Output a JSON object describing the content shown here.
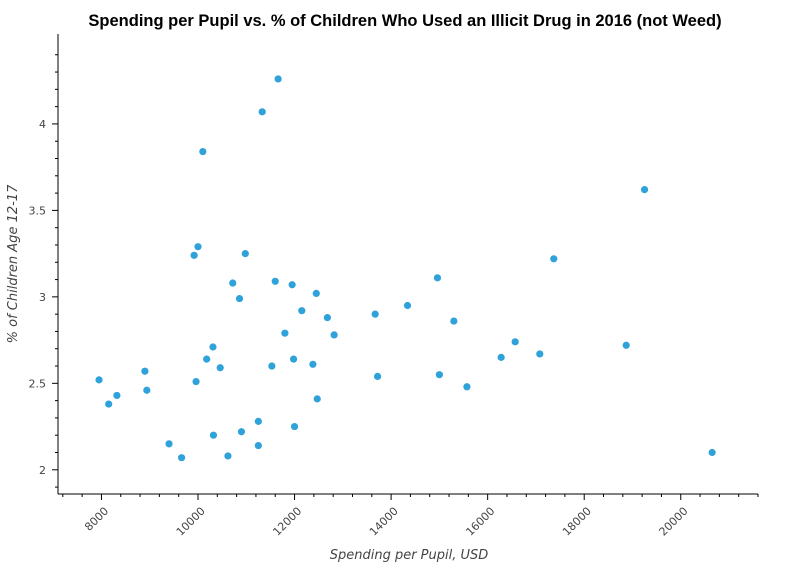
{
  "chart_data": {
    "type": "scatter",
    "title": "Spending per Pupil vs. % of Children Who Used an Illicit Drug in 2016 (not Weed)",
    "xlabel": "Spending per Pupil, USD",
    "ylabel": "% of Children Age 12-17",
    "xlim": [
      7100,
      21600
    ],
    "ylim": [
      1.86,
      4.52
    ],
    "x_ticks": [
      8000,
      10000,
      12000,
      14000,
      16000,
      18000,
      20000
    ],
    "x_tick_labels": [
      "8000",
      "10000",
      "12000",
      "14000",
      "16000",
      "18000",
      "20000"
    ],
    "y_ticks": [
      2,
      2.5,
      3,
      3.5,
      4
    ],
    "y_tick_labels": [
      "2",
      "2.5",
      "3",
      "3.5",
      "4"
    ],
    "grid": false,
    "marker_color": "#30a2da",
    "points": [
      {
        "x": 7950,
        "y": 2.52
      },
      {
        "x": 8150,
        "y": 2.38
      },
      {
        "x": 8320,
        "y": 2.43
      },
      {
        "x": 8900,
        "y": 2.57
      },
      {
        "x": 8940,
        "y": 2.46
      },
      {
        "x": 9400,
        "y": 2.15
      },
      {
        "x": 9660,
        "y": 2.07
      },
      {
        "x": 9920,
        "y": 3.24
      },
      {
        "x": 9960,
        "y": 2.51
      },
      {
        "x": 10000,
        "y": 3.29
      },
      {
        "x": 10100,
        "y": 3.84
      },
      {
        "x": 10180,
        "y": 2.64
      },
      {
        "x": 10310,
        "y": 2.71
      },
      {
        "x": 10320,
        "y": 2.2
      },
      {
        "x": 10460,
        "y": 2.59
      },
      {
        "x": 10620,
        "y": 2.08
      },
      {
        "x": 10720,
        "y": 3.08
      },
      {
        "x": 10860,
        "y": 2.99
      },
      {
        "x": 10900,
        "y": 2.22
      },
      {
        "x": 10980,
        "y": 3.25
      },
      {
        "x": 11250,
        "y": 2.28
      },
      {
        "x": 11250,
        "y": 2.14
      },
      {
        "x": 11330,
        "y": 4.07
      },
      {
        "x": 11530,
        "y": 2.6
      },
      {
        "x": 11600,
        "y": 3.09
      },
      {
        "x": 11660,
        "y": 4.26
      },
      {
        "x": 11800,
        "y": 2.79
      },
      {
        "x": 11950,
        "y": 3.07
      },
      {
        "x": 11980,
        "y": 2.64
      },
      {
        "x": 12000,
        "y": 2.25
      },
      {
        "x": 12150,
        "y": 2.92
      },
      {
        "x": 12380,
        "y": 2.61
      },
      {
        "x": 12450,
        "y": 3.02
      },
      {
        "x": 12470,
        "y": 2.41
      },
      {
        "x": 12680,
        "y": 2.88
      },
      {
        "x": 12820,
        "y": 2.78
      },
      {
        "x": 13670,
        "y": 2.9
      },
      {
        "x": 13720,
        "y": 2.54
      },
      {
        "x": 14340,
        "y": 2.95
      },
      {
        "x": 14960,
        "y": 3.11
      },
      {
        "x": 15000,
        "y": 2.55
      },
      {
        "x": 15300,
        "y": 2.86
      },
      {
        "x": 15570,
        "y": 2.48
      },
      {
        "x": 16280,
        "y": 2.65
      },
      {
        "x": 16570,
        "y": 2.74
      },
      {
        "x": 17080,
        "y": 2.67
      },
      {
        "x": 17370,
        "y": 3.22
      },
      {
        "x": 18870,
        "y": 2.72
      },
      {
        "x": 19250,
        "y": 3.62
      },
      {
        "x": 20650,
        "y": 2.1
      }
    ]
  }
}
